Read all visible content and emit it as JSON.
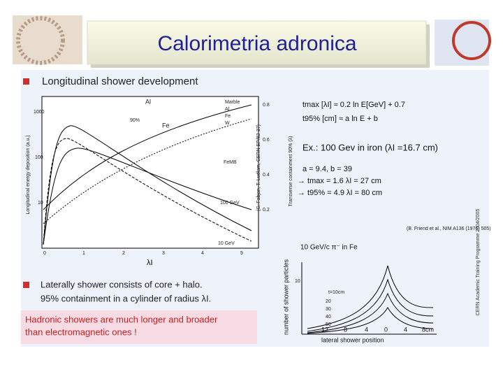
{
  "title": "Calorimetria adronica",
  "section1": {
    "bullet": "Longitudinal shower development"
  },
  "longitudinal_plot": {
    "y_axis_label": "Longitudinal energy deposition (a.u.)",
    "y_ticks": [
      "1000",
      "100",
      "10"
    ],
    "x_ticks": [
      "0",
      "1",
      "2",
      "3",
      "4",
      "5"
    ],
    "x_axis_label": "λI",
    "right_axis_label": "Transverse containment 90% (λ)",
    "right_ticks": [
      "0.8",
      "0.6",
      "0.4",
      "0.2"
    ],
    "credit": "(C. Fabjan, T. Ludlam, CERN EP/82-37)",
    "legend": [
      "Marble",
      "Al",
      "Fe",
      "W"
    ],
    "annotations": [
      "Al",
      "Fe",
      "90%",
      "FeMB",
      "100 GeV",
      "10 GeV"
    ]
  },
  "formulas": [
    "tmax [λI] ≈ 0.2 ln E[GeV] + 0.7",
    "t95% [cm] ≈ a ln E + b"
  ],
  "example": "Ex.: 100 Gev in iron  (λI =16.7 cm)",
  "params": [
    "a = 9.4, b = 39",
    "→ tmax = 1.6 λI = 27 cm",
    "→ t95% = 4.9 λI = 80 cm"
  ],
  "lateral_plot": {
    "reference": "(B. Friend et al., NIM A136 (1976) 505)",
    "title": "10 GeV/c π⁻  in  Fe",
    "y_axis_label": "number of shower particles",
    "x_axis_label": "lateral  shower  position",
    "x_ticks": [
      "12",
      "8",
      "4",
      "0",
      "4",
      "8cm"
    ],
    "y_ticks": [
      "10"
    ],
    "depths": [
      "t=10cm",
      "20",
      "30",
      "40",
      "50"
    ]
  },
  "section2": {
    "bullet": "Laterally shower consists of core + halo.",
    "line2": "95% containment in a cylinder of radius λI."
  },
  "highlight": [
    "Hadronic showers are much longer and broader",
    "than electromagnetic ones !"
  ],
  "side_note": "CERN Academic Training Programme 2004/2005"
}
